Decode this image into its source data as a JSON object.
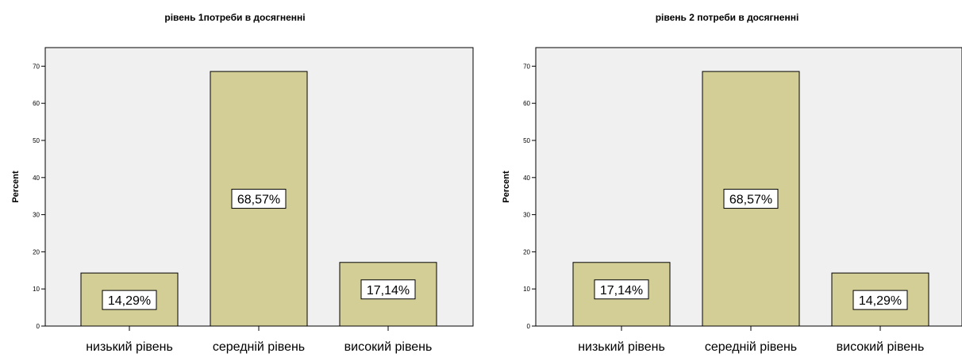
{
  "chart_data": [
    {
      "type": "bar",
      "title": "рівень 1потреби в досягненні",
      "ylabel": "Percent",
      "xlabel": "",
      "ylim": [
        0,
        75
      ],
      "yticks": [
        0,
        10,
        20,
        30,
        40,
        50,
        60,
        70
      ],
      "categories": [
        "низький рівень",
        "середній рівень",
        "високий рівень"
      ],
      "values": [
        14.29,
        68.57,
        17.14
      ],
      "data_labels": [
        "14,29%",
        "68,57%",
        "17,14%"
      ],
      "bar_color": "#d3ce96",
      "plot_bg": "#f0f0f0",
      "grid": false
    },
    {
      "type": "bar",
      "title": "рівень 2 потреби в досягненні",
      "ylabel": "Percent",
      "xlabel": "",
      "ylim": [
        0,
        75
      ],
      "yticks": [
        0,
        10,
        20,
        30,
        40,
        50,
        60,
        70
      ],
      "categories": [
        "низький рівень",
        "середній рівень",
        "високий рівень"
      ],
      "values": [
        17.14,
        68.57,
        14.29
      ],
      "data_labels": [
        "17,14%",
        "68,57%",
        "14,29%"
      ],
      "bar_color": "#d3ce96",
      "plot_bg": "#f0f0f0",
      "grid": false
    }
  ]
}
